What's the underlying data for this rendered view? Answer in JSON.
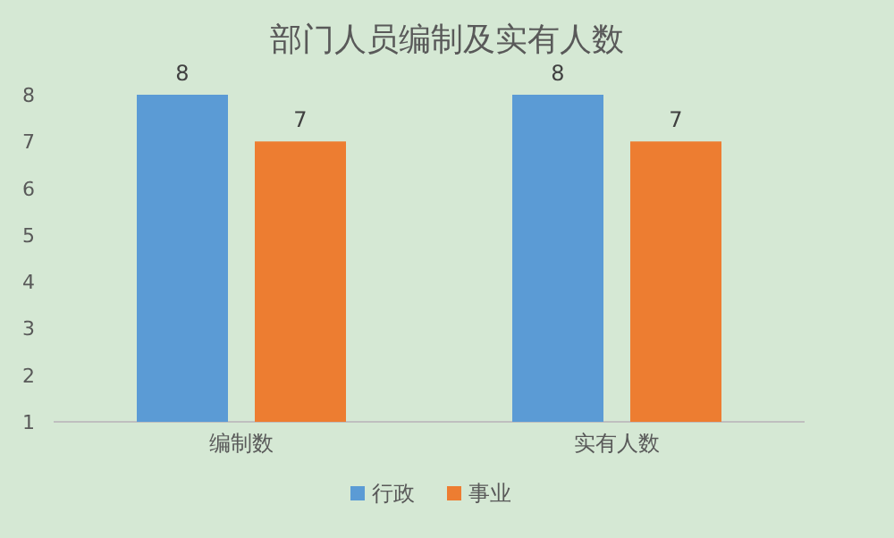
{
  "chart_data": {
    "type": "bar",
    "title": "部门人员编制及实有人数",
    "categories": [
      "编制数",
      "实有人数"
    ],
    "series": [
      {
        "name": "行政",
        "color": "#5b9bd5",
        "values": [
          8,
          8
        ]
      },
      {
        "name": "事业",
        "color": "#ed7d31",
        "values": [
          7,
          7
        ]
      }
    ],
    "ylim": [
      1,
      8
    ],
    "yticks": [
      1,
      2,
      3,
      4,
      5,
      6,
      7,
      8
    ],
    "data_labels": true,
    "legend": "bottom",
    "grid": false
  }
}
